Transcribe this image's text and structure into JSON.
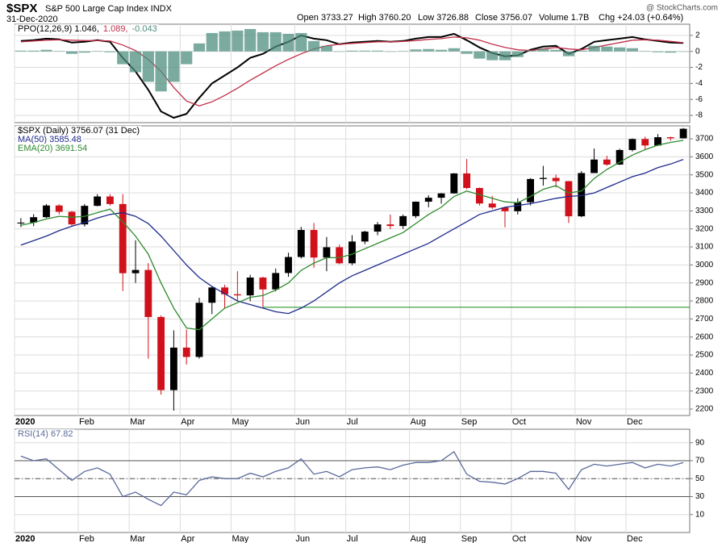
{
  "header": {
    "symbol": "$SPX",
    "name": "S&P 500 Large Cap Index INDX",
    "date": "31-Dec-2020",
    "open": "Open 3733.27",
    "high": "High 3760.20",
    "low": "Low 3726.88",
    "close": "Close 3756.07",
    "volume": "Volume 1.7B",
    "change": "Chg +24.03 (+0.64%)",
    "source": "@ StockCharts.com"
  },
  "chart_data": [
    {
      "type": "line",
      "legend_layout": "row",
      "ylim": [
        -8.9,
        3.4
      ],
      "yticks": [
        2,
        0,
        -2,
        -4,
        -6,
        -8
      ],
      "grid": true,
      "series": [
        {
          "name": "PPO(12,26,9) 1.046,",
          "style": "line",
          "color": "#000000",
          "values": [
            1.3,
            1.4,
            1.6,
            1.5,
            1.1,
            1.2,
            1.4,
            1.2,
            -0.8,
            -2.5,
            -4.8,
            -7.5,
            -8.3,
            -7.8,
            -5.8,
            -4.0,
            -3.0,
            -2.0,
            -0.8,
            -0.3,
            0.6,
            1.2,
            2.0,
            1.6,
            1.4,
            0.9,
            1.1,
            1.2,
            1.3,
            1.2,
            1.3,
            1.6,
            1.8,
            1.8,
            2.2,
            1.4,
            0.5,
            -0.2,
            -0.6,
            -0.5,
            0.2,
            0.6,
            0.7,
            -0.3,
            0.3,
            1.2,
            1.4,
            1.6,
            1.8,
            1.5,
            1.3,
            1.1,
            1.046
          ]
        },
        {
          "name": "1.089,",
          "style": "line",
          "color": "#c0304a",
          "values": [
            1.2,
            1.3,
            1.4,
            1.45,
            1.4,
            1.35,
            1.35,
            1.3,
            0.8,
            0.1,
            -1.0,
            -2.5,
            -4.5,
            -6.2,
            -6.8,
            -6.3,
            -5.5,
            -4.6,
            -3.6,
            -2.7,
            -1.8,
            -1.0,
            -0.3,
            0.3,
            0.7,
            0.9,
            1.0,
            1.1,
            1.2,
            1.2,
            1.25,
            1.35,
            1.5,
            1.6,
            1.8,
            1.7,
            1.4,
            0.9,
            0.5,
            0.2,
            0.1,
            0.3,
            0.5,
            0.3,
            0.2,
            0.5,
            0.8,
            1.1,
            1.4,
            1.45,
            1.4,
            1.25,
            1.089
          ]
        },
        {
          "name": "-0.043",
          "style": "histogram",
          "color": "#4f8f7f",
          "values": [
            0.1,
            0.1,
            0.2,
            0.05,
            -0.3,
            -0.15,
            0.05,
            -0.1,
            -1.6,
            -2.6,
            -3.8,
            -5.0,
            -3.8,
            -1.6,
            1.0,
            2.3,
            2.5,
            2.6,
            2.8,
            2.4,
            2.4,
            2.2,
            2.3,
            1.3,
            0.7,
            0.0,
            0.1,
            0.1,
            0.1,
            0.0,
            0.05,
            0.25,
            0.3,
            0.2,
            0.4,
            -0.3,
            -0.9,
            -1.1,
            -1.1,
            -0.7,
            0.1,
            0.3,
            0.2,
            -0.6,
            0.1,
            0.7,
            0.6,
            0.5,
            0.4,
            0.05,
            -0.1,
            -0.15,
            -0.043
          ]
        }
      ]
    },
    {
      "type": "candlestick",
      "legend_layout": "column",
      "ylim": [
        2164,
        3772
      ],
      "yticks": [
        2200,
        2300,
        2400,
        2500,
        2600,
        2700,
        2800,
        2900,
        3000,
        3100,
        3200,
        3300,
        3400,
        3500,
        3600,
        3700
      ],
      "grid": true,
      "categories": [
        "2020",
        null,
        null,
        null,
        null,
        "Feb",
        null,
        null,
        null,
        "Mar",
        null,
        null,
        null,
        "Apr",
        null,
        null,
        null,
        "May",
        null,
        null,
        null,
        null,
        "Jun",
        null,
        null,
        null,
        "Jul",
        null,
        null,
        null,
        null,
        "Aug",
        null,
        null,
        null,
        "Sep",
        null,
        null,
        null,
        "Oct",
        null,
        null,
        null,
        null,
        "Nov",
        null,
        null,
        null,
        "Dec",
        null,
        null,
        null,
        null
      ],
      "hline": {
        "value": 2765,
        "color": "#2e9a2e"
      },
      "series": [
        {
          "name": "$SPX (Daily) 3756.07 (31 Dec)",
          "style": "candles",
          "up_color": "#000000",
          "down_color": "#d0101a",
          "open": [
            3230,
            3235,
            3265,
            3330,
            3295,
            3225,
            3328,
            3380,
            3338,
            2954,
            2972,
            2711,
            2305,
            2541,
            2489,
            2790,
            2875,
            2837,
            2831,
            2930,
            2864,
            2955,
            3044,
            3194,
            3041,
            3098,
            3009,
            3130,
            3185,
            3225,
            3216,
            3271,
            3351,
            3373,
            3397,
            3508,
            3427,
            3341,
            3319,
            3298,
            3348,
            3477,
            3483,
            3465,
            3270,
            3510,
            3585,
            3557,
            3638,
            3699,
            3663,
            3709,
            3703
          ],
          "high": [
            3260,
            3282,
            3338,
            3337,
            3300,
            3338,
            3393,
            3393,
            3393,
            3137,
            3010,
            2720,
            2637,
            2641,
            2818,
            2880,
            2890,
            2965,
            2945,
            2935,
            2980,
            3068,
            3211,
            3233,
            3155,
            3113,
            3165,
            3190,
            3238,
            3280,
            3280,
            3352,
            3387,
            3399,
            3510,
            3588,
            3430,
            3383,
            3320,
            3370,
            3482,
            3550,
            3502,
            3466,
            3521,
            3646,
            3606,
            3645,
            3702,
            3712,
            3726,
            3712,
            3760
          ],
          "low": [
            3210,
            3215,
            3260,
            3281,
            3214,
            3213,
            3325,
            3330,
            2855,
            2900,
            2480,
            2280,
            2191,
            2447,
            2480,
            2727,
            2760,
            2797,
            2798,
            2766,
            2853,
            2934,
            3036,
            2984,
            2965,
            3004,
            2999,
            3115,
            3165,
            3199,
            3200,
            3260,
            3320,
            3340,
            3395,
            3420,
            3330,
            3310,
            3209,
            3280,
            3330,
            3440,
            3430,
            3233,
            3265,
            3510,
            3550,
            3555,
            3630,
            3640,
            3660,
            3690,
            3702
          ],
          "close": [
            3235,
            3265,
            3330,
            3295,
            3225,
            3328,
            3380,
            3338,
            2954,
            2972,
            2711,
            2305,
            2541,
            2489,
            2790,
            2875,
            2837,
            2831,
            2930,
            2864,
            2955,
            3044,
            3194,
            3041,
            3098,
            3009,
            3130,
            3185,
            3225,
            3216,
            3271,
            3351,
            3373,
            3397,
            3508,
            3427,
            3341,
            3319,
            3298,
            3348,
            3477,
            3483,
            3465,
            3270,
            3510,
            3585,
            3557,
            3638,
            3699,
            3663,
            3709,
            3703,
            3756
          ]
        },
        {
          "name": "MA(50) 3585.48",
          "style": "line",
          "color": "#1f2a8c",
          "values": [
            3110,
            3135,
            3160,
            3190,
            3215,
            3235,
            3260,
            3280,
            3290,
            3270,
            3230,
            3160,
            3080,
            3000,
            2930,
            2880,
            2840,
            2800,
            2780,
            2760,
            2740,
            2730,
            2760,
            2800,
            2850,
            2900,
            2940,
            2970,
            3000,
            3030,
            3060,
            3090,
            3120,
            3160,
            3200,
            3240,
            3280,
            3300,
            3320,
            3330,
            3340,
            3355,
            3370,
            3380,
            3385,
            3400,
            3430,
            3460,
            3490,
            3510,
            3540,
            3560,
            3585.48
          ]
        },
        {
          "name": "EMA(20) 3691.54",
          "style": "line",
          "color": "#2e8b2e",
          "values": [
            3220,
            3235,
            3255,
            3270,
            3265,
            3270,
            3290,
            3310,
            3240,
            3160,
            3060,
            2900,
            2760,
            2650,
            2640,
            2700,
            2760,
            2790,
            2820,
            2830,
            2860,
            2900,
            2970,
            3010,
            3040,
            3040,
            3060,
            3090,
            3120,
            3150,
            3180,
            3230,
            3280,
            3320,
            3380,
            3410,
            3390,
            3370,
            3350,
            3345,
            3380,
            3420,
            3440,
            3400,
            3410,
            3480,
            3530,
            3570,
            3610,
            3640,
            3665,
            3680,
            3691.54
          ]
        }
      ]
    },
    {
      "type": "line",
      "legend_layout": "row",
      "ylim": [
        -10,
        105
      ],
      "yticks": [
        10,
        30,
        50,
        70,
        90
      ],
      "grid": true,
      "levels": [
        30,
        50,
        70
      ],
      "categories": [
        "2020",
        null,
        null,
        null,
        null,
        "Feb",
        null,
        null,
        null,
        "Mar",
        null,
        null,
        null,
        "Apr",
        null,
        null,
        null,
        "May",
        null,
        null,
        null,
        null,
        "Jun",
        null,
        null,
        null,
        "Jul",
        null,
        null,
        null,
        null,
        "Aug",
        null,
        null,
        null,
        "Sep",
        null,
        null,
        null,
        "Oct",
        null,
        null,
        null,
        null,
        "Nov",
        null,
        null,
        null,
        "Dec",
        null,
        null,
        null,
        null
      ],
      "series": [
        {
          "name": "RSI(14) 67.82",
          "style": "line",
          "color": "#5a6a9a",
          "values": [
            75,
            70,
            72,
            60,
            48,
            58,
            62,
            55,
            30,
            35,
            27,
            20,
            35,
            32,
            48,
            52,
            50,
            50,
            56,
            52,
            58,
            62,
            72,
            55,
            58,
            52,
            60,
            62,
            63,
            60,
            65,
            68,
            68,
            70,
            80,
            55,
            47,
            46,
            44,
            50,
            58,
            58,
            56,
            38,
            60,
            66,
            64,
            66,
            68,
            62,
            66,
            64,
            67.82
          ]
        }
      ]
    }
  ]
}
